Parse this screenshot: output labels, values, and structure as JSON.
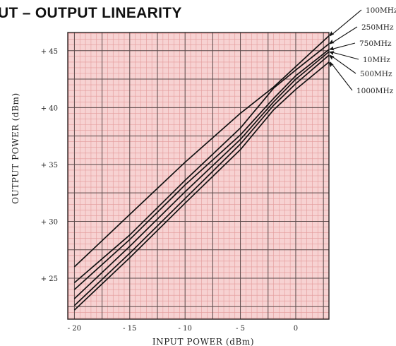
{
  "chart_data": {
    "type": "line",
    "title": "UT – OUTPUT  LINEARITY",
    "xlabel": "INPUT  POWER  (dBm)",
    "ylabel": "OUTPUT  POWER  (dBm)",
    "xlim": [
      -20.6,
      3
    ],
    "ylim": [
      21.4,
      46.6
    ],
    "grid": true,
    "x_ticks": [
      {
        "value": -20,
        "label": "- 20"
      },
      {
        "value": -15,
        "label": "- 15"
      },
      {
        "value": -10,
        "label": "- 10"
      },
      {
        "value": -5,
        "label": "- 5"
      },
      {
        "value": 0,
        "label": "0"
      }
    ],
    "y_ticks": [
      {
        "value": 25,
        "label": "+ 25"
      },
      {
        "value": 30,
        "label": "+ 30"
      },
      {
        "value": 35,
        "label": "+ 35"
      },
      {
        "value": 40,
        "label": "+ 40"
      },
      {
        "value": 45,
        "label": "+ 45"
      }
    ],
    "legend_placement": "right",
    "series": [
      {
        "name": "100MHz",
        "x": [
          -20,
          -15,
          -10,
          -5,
          -2,
          0,
          3
        ],
        "y": [
          26.0,
          30.6,
          35.2,
          39.5,
          41.8,
          43.6,
          46.3
        ]
      },
      {
        "name": "250MHz",
        "x": [
          -20,
          -15,
          -10,
          -5,
          -2,
          0,
          3
        ],
        "y": [
          24.6,
          28.8,
          33.6,
          38.2,
          41.7,
          43.3,
          45.6
        ]
      },
      {
        "name": "750MHz",
        "x": [
          -20,
          -15,
          -10,
          -5,
          -2,
          0,
          3
        ],
        "y": [
          24.0,
          28.4,
          33.2,
          37.6,
          40.8,
          42.8,
          45.1
        ]
      },
      {
        "name": "10MHz",
        "x": [
          -20,
          -15,
          -10,
          -5,
          -2,
          0,
          3
        ],
        "y": [
          23.2,
          27.8,
          32.6,
          37.2,
          40.5,
          42.5,
          44.9
        ]
      },
      {
        "name": "500MHz",
        "x": [
          -20,
          -15,
          -10,
          -5,
          -2,
          0,
          3
        ],
        "y": [
          22.6,
          27.2,
          32.0,
          36.8,
          40.2,
          42.1,
          44.6
        ]
      },
      {
        "name": "1000MHz",
        "x": [
          -20,
          -15,
          -10,
          -5,
          -2,
          0,
          3
        ],
        "y": [
          22.2,
          26.8,
          31.6,
          36.3,
          39.8,
          41.6,
          44.0
        ]
      }
    ],
    "colors": {
      "paper": "#f7d2d2",
      "grid_major": "#5a4a4a",
      "grid_minor": "#e39a9a",
      "lines": "#111111"
    }
  }
}
